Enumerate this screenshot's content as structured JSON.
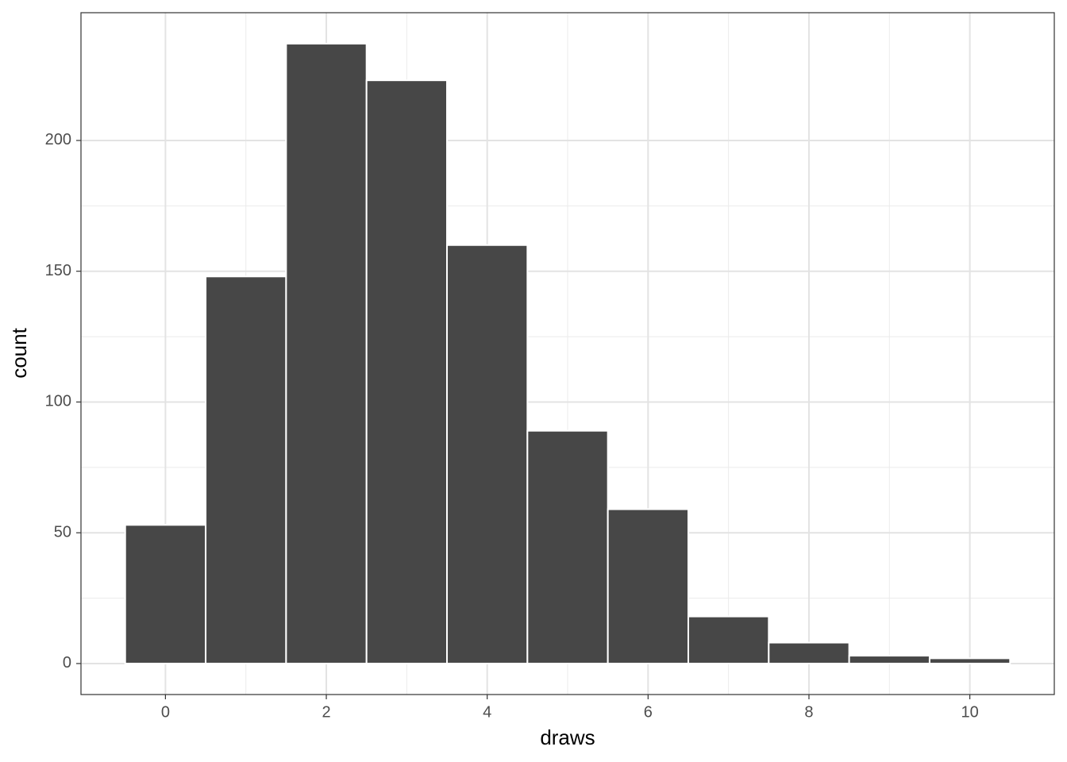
{
  "chart_data": {
    "type": "histogram",
    "x_label": "draws",
    "y_label": "count",
    "bins": [
      -0.5,
      0.5,
      1.5,
      2.5,
      3.5,
      4.5,
      5.5,
      6.5,
      7.5,
      8.5,
      9.5,
      10.5
    ],
    "values": [
      53,
      148,
      237,
      223,
      160,
      89,
      59,
      18,
      8,
      3,
      2
    ],
    "color": "#474747",
    "xlim": [
      -1.05,
      11.05
    ],
    "xticks": [
      0,
      2,
      4,
      6,
      8,
      10
    ],
    "ylim": [
      -11.85,
      248.85
    ],
    "yticks": [
      0,
      50,
      100,
      150,
      200
    ],
    "grid": true
  }
}
